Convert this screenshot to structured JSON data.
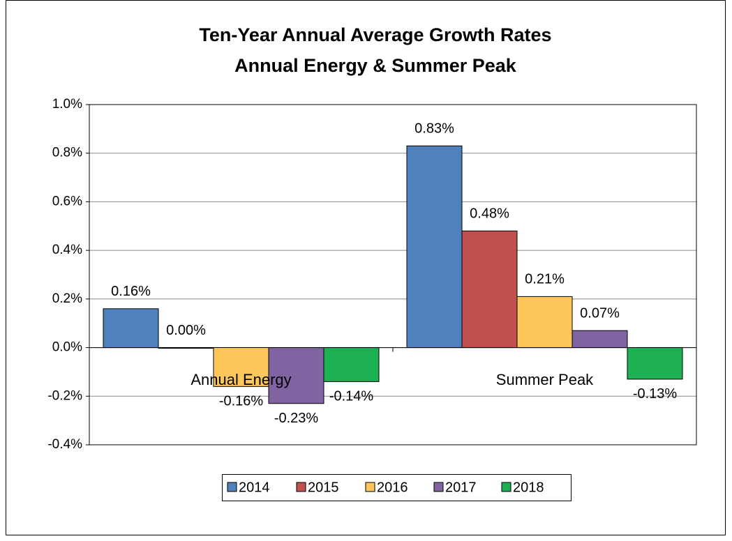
{
  "chart_data": {
    "type": "bar",
    "title": "Ten-Year Annual Average Growth Rates",
    "subtitle": "Annual Energy & Summer Peak",
    "categories": [
      "Annual Energy",
      "Summer Peak"
    ],
    "series": [
      {
        "name": "2014",
        "color": "#4f81bd",
        "values": [
          0.16,
          0.83
        ],
        "value_labels": [
          "0.16%",
          "0.83%"
        ]
      },
      {
        "name": "2015",
        "color": "#c0504d",
        "values": [
          0.0,
          0.48
        ],
        "value_labels": [
          "0.00%",
          "0.48%"
        ]
      },
      {
        "name": "2016",
        "color": "#ffc65c",
        "values": [
          -0.16,
          0.21
        ],
        "value_labels": [
          "-0.16%",
          "0.21%"
        ]
      },
      {
        "name": "2017",
        "color": "#8064a2",
        "values": [
          -0.23,
          0.07
        ],
        "value_labels": [
          "-0.23%",
          "0.07%"
        ]
      },
      {
        "name": "2018",
        "color": "#1db153",
        "values": [
          -0.14,
          -0.13
        ],
        "value_labels": [
          "-0.14%",
          "-0.13%"
        ]
      }
    ],
    "ylim": [
      -0.4,
      1.0
    ],
    "yticks": [
      {
        "value": -0.4,
        "label": "-0.4%"
      },
      {
        "value": -0.2,
        "label": "-0.2%"
      },
      {
        "value": 0,
        "label": "0.0%"
      },
      {
        "value": 0.2,
        "label": "0.2%"
      },
      {
        "value": 0.4,
        "label": "0.4%"
      },
      {
        "value": 0.6,
        "label": "0.6%"
      },
      {
        "value": 0.8,
        "label": "0.8%"
      },
      {
        "value": 1.0,
        "label": "1.0%"
      }
    ],
    "grid": true,
    "legend": "bottom"
  }
}
